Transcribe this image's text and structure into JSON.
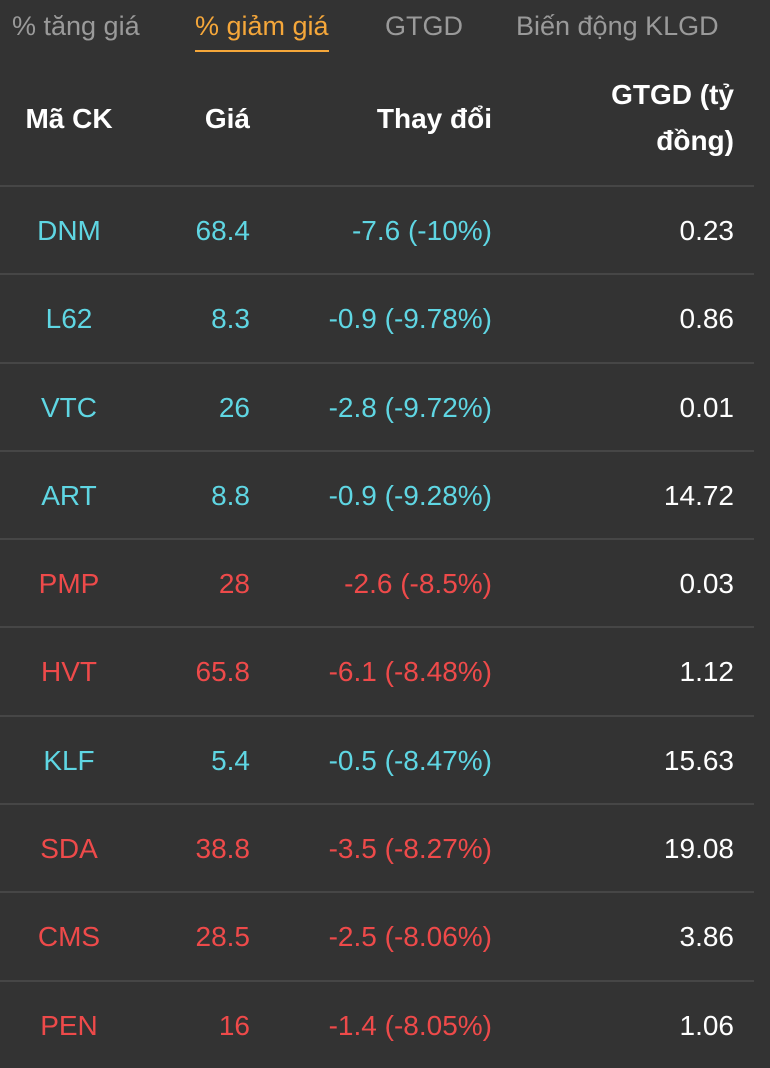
{
  "colors": {
    "background": "#333333",
    "active_tab": "#f5a73a",
    "inactive_tab": "#9a9a9a",
    "floor": "#5fd6e3",
    "down": "#ee4a4a",
    "divider": "#464646"
  },
  "tabs": [
    {
      "label": "% tăng giá",
      "active": false
    },
    {
      "label": "% giảm giá",
      "active": true
    },
    {
      "label": "GTGD",
      "active": false
    },
    {
      "label": "Biến động KLGD",
      "active": false
    }
  ],
  "table": {
    "headers": {
      "code": "Mã CK",
      "price": "Giá",
      "change": "Thay đổi",
      "value_line1": "GTGD (tỷ",
      "value_line2": "đồng)"
    },
    "rows": [
      {
        "code": "DNM",
        "price": "68.4",
        "change": "-7.6 (-10%)",
        "value": "0.23",
        "status": "floor"
      },
      {
        "code": "L62",
        "price": "8.3",
        "change": "-0.9 (-9.78%)",
        "value": "0.86",
        "status": "floor"
      },
      {
        "code": "VTC",
        "price": "26",
        "change": "-2.8 (-9.72%)",
        "value": "0.01",
        "status": "floor"
      },
      {
        "code": "ART",
        "price": "8.8",
        "change": "-0.9 (-9.28%)",
        "value": "14.72",
        "status": "floor"
      },
      {
        "code": "PMP",
        "price": "28",
        "change": "-2.6 (-8.5%)",
        "value": "0.03",
        "status": "down"
      },
      {
        "code": "HVT",
        "price": "65.8",
        "change": "-6.1 (-8.48%)",
        "value": "1.12",
        "status": "down"
      },
      {
        "code": "KLF",
        "price": "5.4",
        "change": "-0.5 (-8.47%)",
        "value": "15.63",
        "status": "floor"
      },
      {
        "code": "SDA",
        "price": "38.8",
        "change": "-3.5 (-8.27%)",
        "value": "19.08",
        "status": "down"
      },
      {
        "code": "CMS",
        "price": "28.5",
        "change": "-2.5 (-8.06%)",
        "value": "3.86",
        "status": "down"
      },
      {
        "code": "PEN",
        "price": "16",
        "change": "-1.4 (-8.05%)",
        "value": "1.06",
        "status": "down"
      }
    ]
  }
}
